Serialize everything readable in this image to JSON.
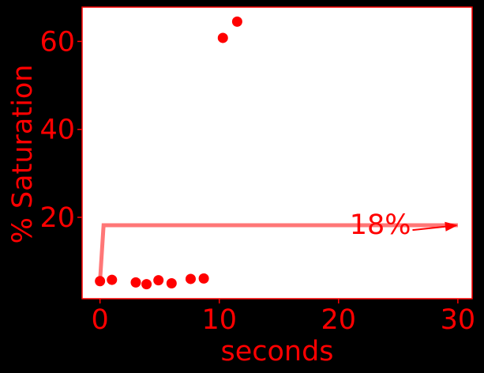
{
  "chart_data": {
    "type": "scatter",
    "xlabel": "seconds",
    "ylabel": "% Saturation",
    "xlim": [
      -1.5,
      31.2
    ],
    "ylim": [
      1.5,
      67.8
    ],
    "x_ticks": [
      0,
      10,
      20,
      30
    ],
    "y_ticks": [
      20,
      40,
      60
    ],
    "x_tick_labels": [
      "0",
      "10",
      "20",
      "30"
    ],
    "y_tick_labels": [
      "20",
      "40",
      "60"
    ],
    "grid": false,
    "series": [
      {
        "type": "scatter",
        "x": [
          0.0,
          1.0,
          3.0,
          3.9,
          4.9,
          6.0,
          7.6,
          8.7,
          10.3,
          11.5
        ],
        "y": [
          5.5,
          5.8,
          5.2,
          4.8,
          5.7,
          5.0,
          6.0,
          6.1,
          60.8,
          64.5
        ],
        "color": "#ff0000"
      },
      {
        "type": "line",
        "x": [
          0.0,
          0.3,
          30.0
        ],
        "y": [
          5.5,
          18.2,
          18.2
        ],
        "color": "#ff7777"
      }
    ],
    "annotations": [
      {
        "text": "18%",
        "x": 23.5,
        "y": 18.4,
        "arrow_from": [
          26.2,
          17.1
        ],
        "arrow_to": [
          30.0,
          18.2
        ]
      }
    ],
    "colors": {
      "background": "#000000",
      "plot_area": "#ffffff",
      "text": "#ff0000",
      "frame": "#ff0000"
    }
  }
}
